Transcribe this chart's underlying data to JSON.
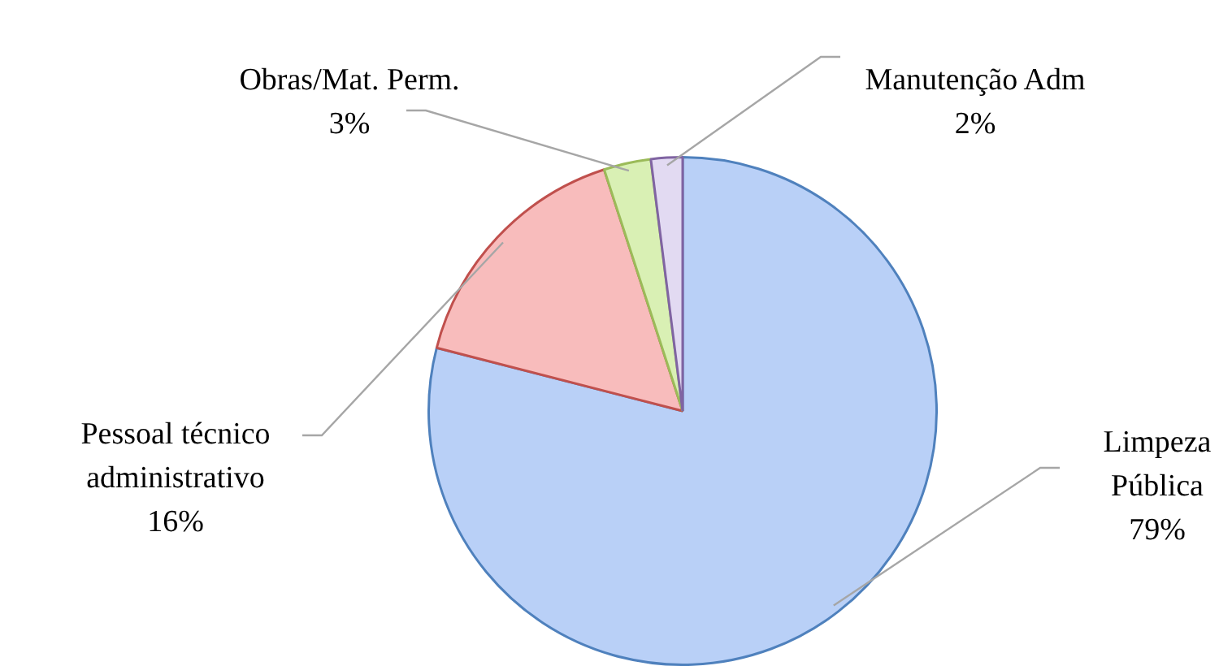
{
  "chart_data": {
    "type": "pie",
    "categories": [
      "Limpeza Pública",
      "Pessoal técnico administrativo",
      "Obras/Mat. Perm.",
      "Manutenção Adm"
    ],
    "values": [
      79,
      16,
      3,
      2
    ],
    "colors": [
      "#b9d0f7",
      "#f8bcbc",
      "#d9f0b4",
      "#e2daf2"
    ],
    "value_labels": [
      "79%",
      "16%",
      "3%",
      "2%"
    ],
    "legend": false
  }
}
